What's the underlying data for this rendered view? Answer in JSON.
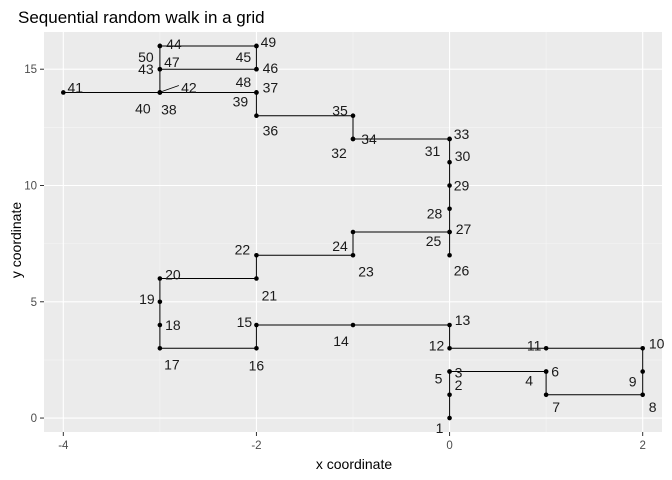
{
  "chart_data": {
    "type": "line",
    "title": "Sequential random walk in a grid",
    "xlabel": "x coordinate",
    "ylabel": "y coordinate",
    "xlim": [
      -4.2,
      2.2
    ],
    "ylim": [
      -0.6,
      16.6
    ],
    "xticks": [
      -4,
      -2,
      0,
      2
    ],
    "yticks": [
      0,
      5,
      10,
      15
    ],
    "grid": true,
    "colors": {
      "panel": "#ebebeb",
      "grid_major": "#ffffff",
      "grid_minor": "#f5f5f5",
      "line": "#000000",
      "point": "#000000"
    },
    "points": [
      {
        "label": "1",
        "x": 0,
        "y": 0
      },
      {
        "label": "2",
        "x": 0,
        "y": 1
      },
      {
        "label": "3",
        "x": 0,
        "y": 2
      },
      {
        "label": "4",
        "x": 1,
        "y": 2
      },
      {
        "label": "5",
        "x": 0,
        "y": 2
      },
      {
        "label": "6",
        "x": 1,
        "y": 2
      },
      {
        "label": "7",
        "x": 1,
        "y": 1
      },
      {
        "label": "8",
        "x": 2,
        "y": 1
      },
      {
        "label": "9",
        "x": 2,
        "y": 2
      },
      {
        "label": "10",
        "x": 2,
        "y": 3
      },
      {
        "label": "11",
        "x": 1,
        "y": 3
      },
      {
        "label": "12",
        "x": 0,
        "y": 3
      },
      {
        "label": "13",
        "x": 0,
        "y": 4
      },
      {
        "label": "14",
        "x": -1,
        "y": 4
      },
      {
        "label": "15",
        "x": -2,
        "y": 4
      },
      {
        "label": "16",
        "x": -2,
        "y": 3
      },
      {
        "label": "17",
        "x": -3,
        "y": 3
      },
      {
        "label": "18",
        "x": -3,
        "y": 4
      },
      {
        "label": "19",
        "x": -3,
        "y": 5
      },
      {
        "label": "20",
        "x": -3,
        "y": 6
      },
      {
        "label": "21",
        "x": -2,
        "y": 6
      },
      {
        "label": "22",
        "x": -2,
        "y": 7
      },
      {
        "label": "23",
        "x": -1,
        "y": 7
      },
      {
        "label": "24",
        "x": -1,
        "y": 8
      },
      {
        "label": "25",
        "x": 0,
        "y": 8
      },
      {
        "label": "26",
        "x": 0,
        "y": 7
      },
      {
        "label": "27",
        "x": 0,
        "y": 8
      },
      {
        "label": "28",
        "x": 0,
        "y": 9
      },
      {
        "label": "29",
        "x": 0,
        "y": 10
      },
      {
        "label": "30",
        "x": 0,
        "y": 11
      },
      {
        "label": "31",
        "x": 0,
        "y": 12
      },
      {
        "label": "32",
        "x": -1,
        "y": 12
      },
      {
        "label": "33",
        "x": 0,
        "y": 12
      },
      {
        "label": "34",
        "x": -1,
        "y": 12
      },
      {
        "label": "35",
        "x": -1,
        "y": 13
      },
      {
        "label": "36",
        "x": -2,
        "y": 13
      },
      {
        "label": "37",
        "x": -2,
        "y": 14
      },
      {
        "label": "38",
        "x": -3,
        "y": 14
      },
      {
        "label": "39",
        "x": -2,
        "y": 14
      },
      {
        "label": "40",
        "x": -3,
        "y": 14
      },
      {
        "label": "41",
        "x": -4,
        "y": 14
      },
      {
        "label": "42",
        "x": -3,
        "y": 14
      },
      {
        "label": "43",
        "x": -3,
        "y": 15
      },
      {
        "label": "44",
        "x": -3,
        "y": 16
      },
      {
        "label": "45",
        "x": -2,
        "y": 16
      },
      {
        "label": "46",
        "x": -2,
        "y": 15
      },
      {
        "label": "47",
        "x": -3,
        "y": 15
      },
      {
        "label": "48",
        "x": -2,
        "y": 15
      },
      {
        "label": "49",
        "x": -2,
        "y": 16
      },
      {
        "label": "50",
        "x": -3,
        "y": 16
      }
    ]
  }
}
